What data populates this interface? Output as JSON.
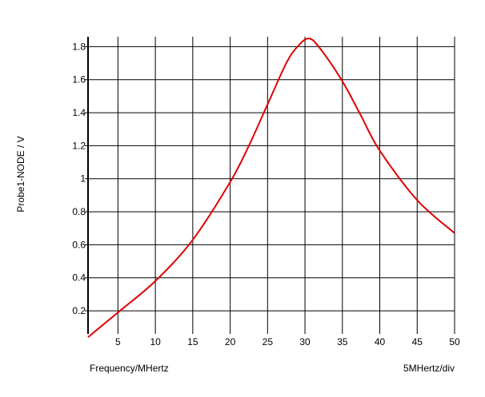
{
  "chart_data": {
    "type": "line",
    "xlabel": "Frequency/MHertz",
    "ylabel": "Probe1-NODE / V",
    "x_scale_note": "5MHertz/div",
    "xlim": [
      1,
      50
    ],
    "ylim": [
      0.06,
      1.86
    ],
    "x_ticks": [
      5,
      10,
      15,
      20,
      25,
      30,
      35,
      40,
      45,
      50
    ],
    "x_tick_labels": [
      "5",
      "10",
      "15",
      "20",
      "25",
      "30",
      "35",
      "40",
      "45",
      "50"
    ],
    "y_ticks": [
      0.2,
      0.4,
      0.6,
      0.8,
      1.0,
      1.2,
      1.4,
      1.6,
      1.8
    ],
    "y_tick_labels": [
      "0.2",
      "0.4",
      "0.6",
      "0.8",
      "1",
      "1.2",
      "1.4",
      "1.6",
      "1.8"
    ],
    "grid": true,
    "series": [
      {
        "color": "#e00000",
        "x": [
          1,
          5,
          10,
          15,
          20,
          22.5,
          25,
          27.5,
          29,
          30.5,
          32,
          35,
          37.5,
          40,
          45,
          50
        ],
        "y": [
          0.04,
          0.19,
          0.38,
          0.63,
          0.98,
          1.2,
          1.45,
          1.7,
          1.8,
          1.85,
          1.79,
          1.59,
          1.38,
          1.17,
          0.87,
          0.67
        ]
      }
    ]
  }
}
